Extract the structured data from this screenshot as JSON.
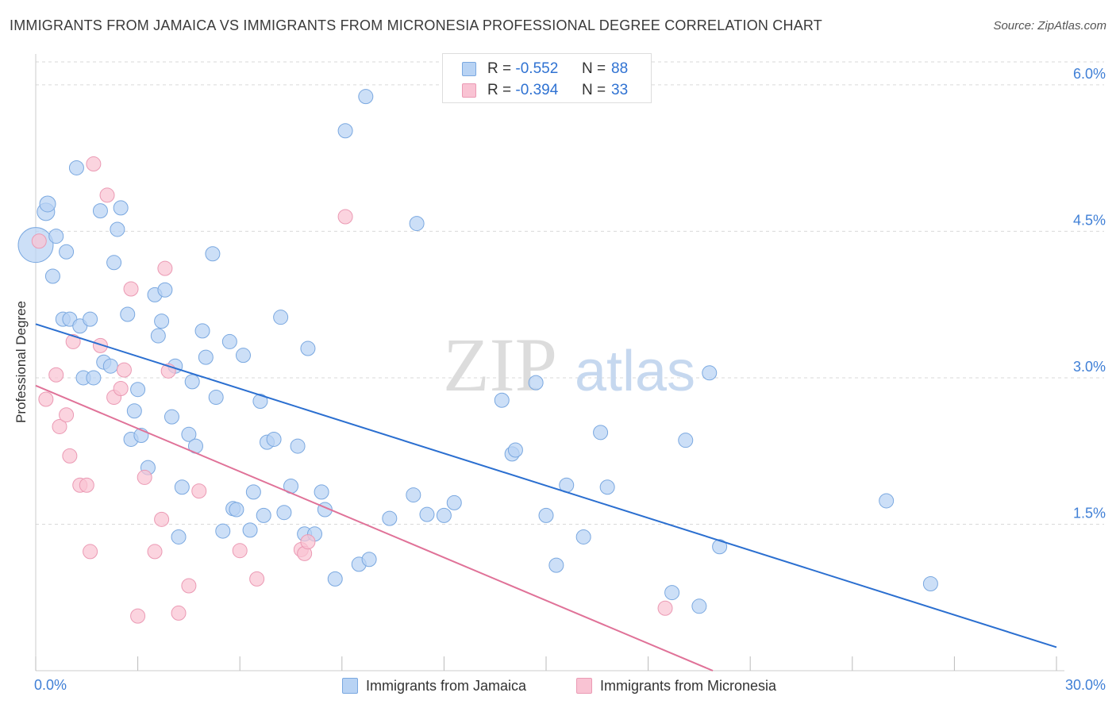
{
  "title": "IMMIGRANTS FROM JAMAICA VS IMMIGRANTS FROM MICRONESIA PROFESSIONAL DEGREE CORRELATION CHART",
  "source": "Source: ZipAtlas.com",
  "watermark": {
    "zip": "ZIP",
    "atlas": "atlas"
  },
  "legend_top": {
    "r_label": "R =",
    "n_label": "N =",
    "rows": [
      {
        "r": "-0.552",
        "n": "88"
      },
      {
        "r": "-0.394",
        "n": "33"
      }
    ]
  },
  "colors": {
    "jamaica_fill": "#b8d3f4",
    "jamaica_stroke": "#7aa8e0",
    "jamaica_line": "#2b6fd0",
    "micronesia_fill": "#f9c3d3",
    "micronesia_stroke": "#eb9ab4",
    "micronesia_line": "#e07298",
    "tick_label": "#3f7fd6",
    "grid": "#d9d9d9"
  },
  "chart_data": {
    "type": "scatter",
    "title": "IMMIGRANTS FROM JAMAICA VS IMMIGRANTS FROM MICRONESIA PROFESSIONAL DEGREE CORRELATION CHART",
    "xlabel": "",
    "ylabel": "Professional Degree",
    "xlim": [
      0,
      30
    ],
    "ylim": [
      0,
      6.3
    ],
    "x_tick_labels": [
      "0.0%",
      "30.0%"
    ],
    "y_ticks": [
      1.5,
      3.0,
      4.5,
      6.0
    ],
    "y_tick_labels": [
      "1.5%",
      "3.0%",
      "4.5%",
      "6.0%"
    ],
    "grid": "horizontal dashed",
    "legend_position": "bottom-center",
    "series": [
      {
        "name": "Immigrants from Jamaica",
        "r": -0.552,
        "n": 88,
        "trend": {
          "x": [
            0,
            30
          ],
          "y": [
            3.55,
            0.24
          ]
        },
        "points": [
          [
            0.0,
            4.36,
            22
          ],
          [
            0.3,
            4.7,
            11
          ],
          [
            0.35,
            4.78,
            10
          ],
          [
            0.5,
            4.04,
            9
          ],
          [
            0.6,
            4.45,
            9
          ],
          [
            0.8,
            3.6,
            9
          ],
          [
            0.9,
            4.29,
            9
          ],
          [
            1.0,
            3.6,
            9
          ],
          [
            1.2,
            5.15,
            9
          ],
          [
            1.3,
            3.53,
            9
          ],
          [
            1.4,
            3.0,
            9
          ],
          [
            1.6,
            3.6,
            9
          ],
          [
            1.7,
            3.0,
            9
          ],
          [
            1.9,
            4.71,
            9
          ],
          [
            2.0,
            3.16,
            9
          ],
          [
            2.2,
            3.12,
            9
          ],
          [
            2.3,
            4.18,
            9
          ],
          [
            2.4,
            4.52,
            9
          ],
          [
            2.5,
            4.74,
            9
          ],
          [
            2.7,
            3.65,
            9
          ],
          [
            2.8,
            2.37,
            9
          ],
          [
            2.9,
            2.66,
            9
          ],
          [
            3.0,
            2.88,
            9
          ],
          [
            3.1,
            2.41,
            9
          ],
          [
            3.3,
            2.08,
            9
          ],
          [
            3.5,
            3.85,
            9
          ],
          [
            3.6,
            3.43,
            9
          ],
          [
            3.7,
            3.58,
            9
          ],
          [
            3.8,
            3.9,
            9
          ],
          [
            4.0,
            2.6,
            9
          ],
          [
            4.1,
            3.12,
            9
          ],
          [
            4.2,
            1.37,
            9
          ],
          [
            4.3,
            1.88,
            9
          ],
          [
            4.5,
            2.42,
            9
          ],
          [
            4.6,
            2.96,
            9
          ],
          [
            4.7,
            2.3,
            9
          ],
          [
            4.9,
            3.48,
            9
          ],
          [
            5.0,
            3.21,
            9
          ],
          [
            5.2,
            4.27,
            9
          ],
          [
            5.3,
            2.8,
            9
          ],
          [
            5.5,
            1.43,
            9
          ],
          [
            5.7,
            3.37,
            9
          ],
          [
            5.8,
            1.66,
            9
          ],
          [
            5.9,
            1.65,
            9
          ],
          [
            6.1,
            3.23,
            9
          ],
          [
            6.3,
            1.44,
            9
          ],
          [
            6.4,
            1.83,
            9
          ],
          [
            6.6,
            2.76,
            9
          ],
          [
            6.7,
            1.59,
            9
          ],
          [
            6.8,
            2.34,
            9
          ],
          [
            7.0,
            2.37,
            9
          ],
          [
            7.2,
            3.62,
            9
          ],
          [
            7.3,
            1.62,
            9
          ],
          [
            7.5,
            1.89,
            9
          ],
          [
            7.7,
            2.3,
            9
          ],
          [
            7.9,
            1.4,
            9
          ],
          [
            8.0,
            3.3,
            9
          ],
          [
            8.2,
            1.4,
            9
          ],
          [
            8.4,
            1.83,
            9
          ],
          [
            8.5,
            1.65,
            9
          ],
          [
            8.8,
            0.94,
            9
          ],
          [
            9.1,
            5.53,
            9
          ],
          [
            9.5,
            1.09,
            9
          ],
          [
            9.7,
            5.88,
            9
          ],
          [
            9.8,
            1.14,
            9
          ],
          [
            10.4,
            1.56,
            9
          ],
          [
            11.1,
            1.8,
            9
          ],
          [
            11.2,
            4.58,
            9
          ],
          [
            11.5,
            1.6,
            9
          ],
          [
            12.0,
            1.59,
            9
          ],
          [
            12.3,
            1.72,
            9
          ],
          [
            13.7,
            2.77,
            9
          ],
          [
            14.0,
            2.22,
            9
          ],
          [
            14.1,
            2.26,
            9
          ],
          [
            14.7,
            2.95,
            9
          ],
          [
            15.0,
            1.59,
            9
          ],
          [
            15.3,
            1.08,
            9
          ],
          [
            15.6,
            1.9,
            9
          ],
          [
            16.1,
            1.37,
            9
          ],
          [
            16.6,
            2.44,
            9
          ],
          [
            16.8,
            1.88,
            9
          ],
          [
            18.7,
            0.8,
            9
          ],
          [
            19.1,
            2.36,
            9
          ],
          [
            19.5,
            0.66,
            9
          ],
          [
            19.8,
            3.05,
            9
          ],
          [
            20.1,
            1.27,
            9
          ],
          [
            25.0,
            1.74,
            9
          ],
          [
            26.3,
            0.89,
            9
          ]
        ]
      },
      {
        "name": "Immigrants from Micronesia",
        "r": -0.394,
        "n": 33,
        "trend": {
          "x": [
            0,
            19.9
          ],
          "y": [
            2.92,
            0.0
          ]
        },
        "points": [
          [
            0.1,
            4.4,
            9
          ],
          [
            0.3,
            2.78,
            9
          ],
          [
            0.6,
            3.03,
            9
          ],
          [
            0.7,
            2.5,
            9
          ],
          [
            0.9,
            2.62,
            9
          ],
          [
            1.0,
            2.2,
            9
          ],
          [
            1.1,
            3.37,
            9
          ],
          [
            1.3,
            1.9,
            9
          ],
          [
            1.5,
            1.9,
            9
          ],
          [
            1.6,
            1.22,
            9
          ],
          [
            1.7,
            5.19,
            9
          ],
          [
            1.9,
            3.33,
            9
          ],
          [
            2.1,
            4.87,
            9
          ],
          [
            2.3,
            2.8,
            9
          ],
          [
            2.5,
            2.89,
            9
          ],
          [
            2.6,
            3.08,
            9
          ],
          [
            2.8,
            3.91,
            9
          ],
          [
            3.0,
            0.56,
            9
          ],
          [
            3.2,
            1.98,
            9
          ],
          [
            3.5,
            1.22,
            9
          ],
          [
            3.7,
            1.55,
            9
          ],
          [
            3.8,
            4.12,
            9
          ],
          [
            3.9,
            3.07,
            9
          ],
          [
            4.2,
            0.59,
            9
          ],
          [
            4.5,
            0.87,
            9
          ],
          [
            4.8,
            1.84,
            9
          ],
          [
            6.0,
            1.23,
            9
          ],
          [
            6.5,
            0.94,
            9
          ],
          [
            7.8,
            1.24,
            9
          ],
          [
            7.9,
            1.2,
            9
          ],
          [
            8.0,
            1.32,
            9
          ],
          [
            9.1,
            4.65,
            9
          ],
          [
            18.5,
            0.64,
            9
          ]
        ]
      }
    ]
  }
}
